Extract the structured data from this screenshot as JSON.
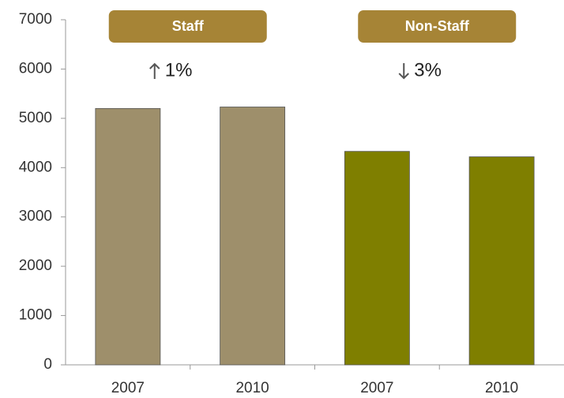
{
  "chart_data": {
    "type": "bar",
    "categories": [
      "2007",
      "2010",
      "2007",
      "2010"
    ],
    "series": [
      {
        "name": "Staff",
        "color": "#9e8f6b",
        "values": [
          5200,
          5230,
          null,
          null
        ]
      },
      {
        "name": "Non-Staff",
        "color": "#7f7f00",
        "values": [
          null,
          null,
          4330,
          4220
        ]
      }
    ],
    "annotations": [
      {
        "text": "1%",
        "direction": "up"
      },
      {
        "text": "3%",
        "direction": "down"
      }
    ],
    "badge_color": "#a68436",
    "ylim": [
      0,
      7000
    ],
    "yticks": [
      0,
      1000,
      2000,
      3000,
      4000,
      5000,
      6000,
      7000
    ]
  }
}
